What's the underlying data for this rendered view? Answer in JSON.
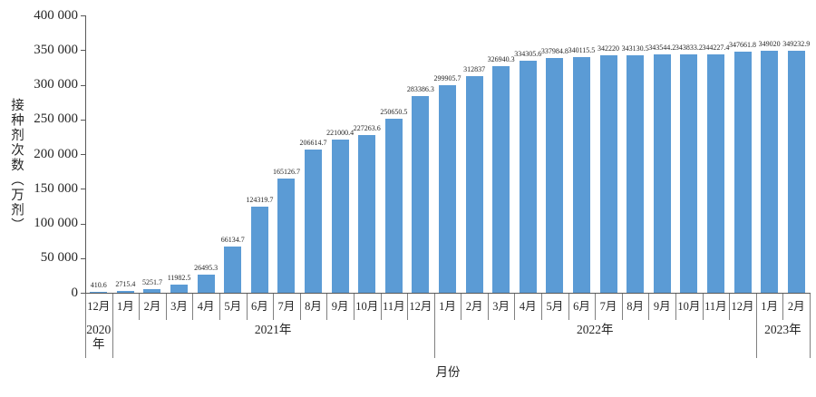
{
  "chart_data": {
    "type": "bar",
    "title": "",
    "ylabel": "接种剂次数（万剂）",
    "xlabel": "月份",
    "ylim": [
      0,
      400000
    ],
    "ytick_interval": 50000,
    "ytick_labels": [
      "400 000",
      "350 000",
      "300 000",
      "250 000",
      "200 000",
      "150 000",
      "100 000",
      "50 000",
      "0"
    ],
    "grid": "off",
    "legend": "none",
    "bar_color": "#5B9BD5",
    "axis_color": "#595959",
    "separator_color": "#808080",
    "categories": [
      "12月",
      "1月",
      "2月",
      "3月",
      "4月",
      "5月",
      "6月",
      "7月",
      "8月",
      "9月",
      "10月",
      "11月",
      "12月",
      "1月",
      "2月",
      "3月",
      "4月",
      "5月",
      "6月",
      "7月",
      "8月",
      "9月",
      "10月",
      "11月",
      "12月",
      "1月",
      "2月"
    ],
    "values": [
      410.6,
      2715.4,
      5251.7,
      11982.5,
      26495.3,
      66134.7,
      124319.7,
      165126.7,
      206614.7,
      221000.4,
      227263.6,
      250650.5,
      283386.3,
      299905.7,
      312837,
      326940.3,
      334305.6,
      337984.8,
      340115.5,
      342220,
      343130.5,
      343544.2,
      343833.2,
      344227.4,
      347661.8,
      349020,
      349232.9
    ],
    "data_labels": [
      "410.6",
      "2715.4",
      "5251.7",
      "11982.5",
      "26495.3",
      "66134.7",
      "124319.7",
      "165126.7",
      "206614.7",
      "221000.4",
      "227263.6",
      "250650.5",
      "283386.3",
      "299905.7",
      "312837",
      "326940.3",
      "334305.6",
      "337984.8",
      "340115.5",
      "342220",
      "343130.5",
      "343544.2",
      "343833.2",
      "344227.4",
      "347661.8",
      "349020",
      "349232.9"
    ],
    "year_groups": [
      {
        "label": "2020年",
        "span": 1
      },
      {
        "label": "2021年",
        "span": 12
      },
      {
        "label": "2022年",
        "span": 12
      },
      {
        "label": "2023年",
        "span": 2
      }
    ]
  }
}
